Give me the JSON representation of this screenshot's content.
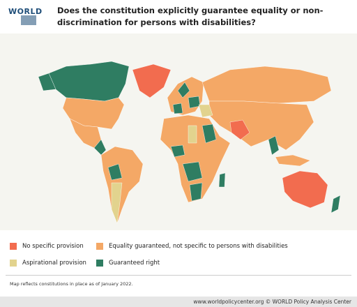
{
  "header": {
    "logo": "WORLD",
    "title": "Does the constitution explicitly guarantee equality or non-discrimination for persons with disabilities?"
  },
  "legend": [
    {
      "label": "No specific provision",
      "color": "#f26c4f"
    },
    {
      "label": "Equality guaranteed, not specific to persons with disabilities",
      "color": "#f4a866"
    },
    {
      "label": "Aspirational provision",
      "color": "#e2d38e"
    },
    {
      "label": "Guaranteed right",
      "color": "#2f7d62"
    }
  ],
  "note": "Map reflects constitutions in place as of January 2022.",
  "footer": "www.worldpolicycenter.org © WORLD Policy Analysis Center"
}
